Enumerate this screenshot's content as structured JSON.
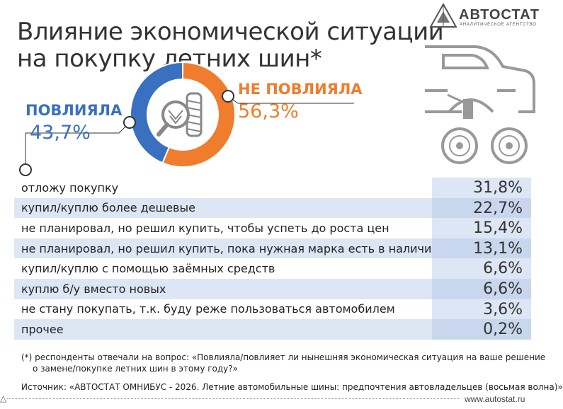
{
  "title": {
    "line1": "Влияние экономической ситуации",
    "line2": "на покупку летних шин*"
  },
  "logo": {
    "name": "АВТОСТАТ",
    "subtitle": "АНАЛИТИЧЕСКОЕ АГЕНТСТВО"
  },
  "colors": {
    "affected": "#3a70c0",
    "not_affected": "#ef7d2d",
    "row_shade": "#dde6f4",
    "value_column": "#c9d7ee"
  },
  "icons": [
    "tire-magnifier-icon",
    "car-jack-icon",
    "wheel-icon"
  ],
  "chart_data": [
    {
      "type": "pie",
      "slices": [
        {
          "label": "ПОВЛИЯЛА",
          "value": 43.7,
          "display": "43,7%",
          "color": "#3a70c0"
        },
        {
          "label": "НЕ ПОВЛИЯЛА",
          "value": 56.3,
          "display": "56,3%",
          "color": "#ef7d2d"
        }
      ]
    },
    {
      "type": "table",
      "rows": [
        {
          "label": "отложу покупку",
          "value": "31,8%"
        },
        {
          "label": "купил/куплю более дешевые",
          "value": "22,7%"
        },
        {
          "label": "не планировал, но решил купить, чтобы успеть до роста цен",
          "value": "15,4%"
        },
        {
          "label": "не планировал, но решил купить, пока нужная марка есть в наличии",
          "value": "13,1%"
        },
        {
          "label": "купил/куплю с помощью заёмных средств",
          "value": "6,6%"
        },
        {
          "label": "куплю б/у вместо новых",
          "value": "6,6%"
        },
        {
          "label": "не стану покупать, т.к. буду реже пользоваться автомобилем",
          "value": "3,6%"
        },
        {
          "label": "прочее",
          "value": "0,2%"
        }
      ]
    }
  ],
  "note": {
    "line1": "(*) респонденты отвечали на вопрос: «Повлияла/повлияет ли нынешняя экономическая ситуация на ваше решение",
    "line2": "о замене/покупке летних шин в этому году?»"
  },
  "source": "Источник: «АВТОСТАТ ОМНИБУС - 2026. Летние автомобильные шины: предпочтения автовладельцев (восьмая волна)»",
  "website": "www.autostat.ru"
}
